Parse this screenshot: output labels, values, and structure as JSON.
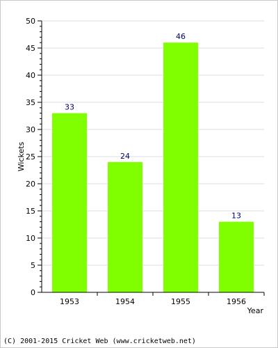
{
  "chart_data": {
    "type": "bar",
    "categories": [
      "1953",
      "1954",
      "1955",
      "1956"
    ],
    "values": [
      33,
      24,
      46,
      13
    ],
    "xlabel": "Year",
    "ylabel": "Wickets",
    "ylim": [
      0,
      50
    ],
    "yticks": [
      0,
      5,
      10,
      15,
      20,
      25,
      30,
      35,
      40,
      45,
      50
    ],
    "data_labels": true,
    "grid": "horizontal",
    "legend": "none",
    "colors": {
      "bar": "#80ff00",
      "grid": "#dcdcdc",
      "axis": "#000000",
      "data_label": "#000066"
    }
  },
  "footer": {
    "copyright": "(C) 2001-2015 Cricket Web (www.cricketweb.net)"
  }
}
